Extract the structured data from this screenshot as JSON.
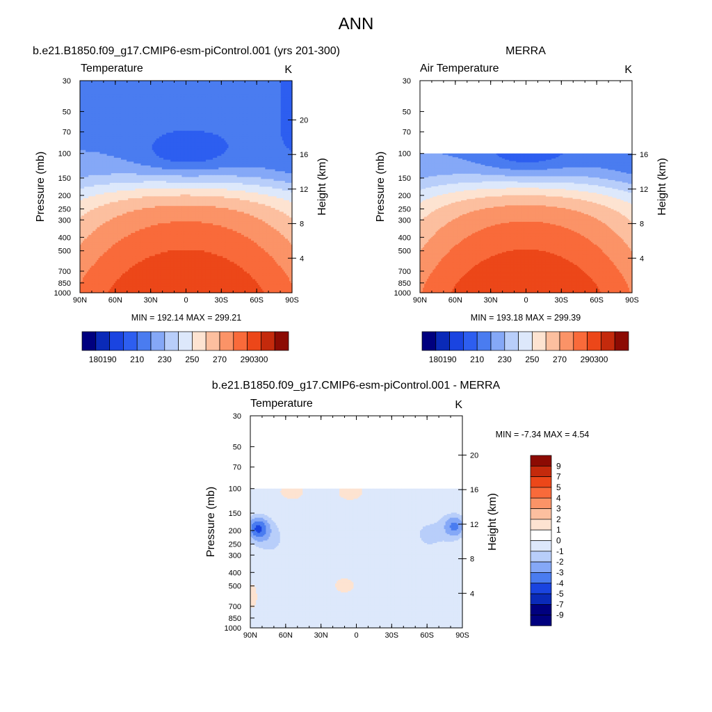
{
  "figure": {
    "title": "ANN"
  },
  "chart_data": [
    {
      "type": "heatmap",
      "panel_title": "b.e21.B1850.f09_g17.CMIP6-esm-piControl.001 (yrs 201-300)",
      "subtitle": "Temperature",
      "units": "K",
      "ylabel_left": "Pressure (mb)",
      "ylabel_right": "Height (km)",
      "x_ticks": [
        "90N",
        "60N",
        "30N",
        "0",
        "30S",
        "60S",
        "90S"
      ],
      "pressure_ticks": [
        30,
        50,
        70,
        100,
        150,
        200,
        250,
        300,
        400,
        500,
        700,
        850,
        1000
      ],
      "height_ticks": [
        4,
        8,
        12,
        16,
        20
      ],
      "ylim_mb": [
        1000,
        30
      ],
      "y_scale": "log",
      "summary": "MIN = 192.14  MAX = 299.21",
      "min": 192.14,
      "max": 299.21,
      "colorbar_orientation": "horizontal",
      "colorbar_levels": [
        180,
        190,
        200,
        210,
        220,
        230,
        240,
        250,
        260,
        270,
        280,
        290,
        300
      ],
      "colorbar_labels": [
        "180",
        "190",
        "210",
        "230",
        "250",
        "270",
        "290",
        "300"
      ],
      "colorbar_colors": [
        "#00007f",
        "#0a2ab8",
        "#1a44e0",
        "#2d5ef0",
        "#4a7cf0",
        "#85a8f7",
        "#b8cefa",
        "#dde8fb",
        "#fde3d1",
        "#fcbf9f",
        "#fb9367",
        "#f96a3a",
        "#ec4719",
        "#c42a0c",
        "#8c0b03"
      ]
    },
    {
      "type": "heatmap",
      "panel_title": "MERRA",
      "subtitle": "Air Temperature",
      "units": "K",
      "ylabel_left": "Pressure (mb)",
      "ylabel_right": "Height (km)",
      "x_ticks": [
        "90N",
        "60N",
        "30N",
        "0",
        "30S",
        "60S",
        "90S"
      ],
      "pressure_ticks": [
        30,
        50,
        70,
        100,
        150,
        200,
        250,
        300,
        400,
        500,
        700,
        850,
        1000
      ],
      "height_ticks": [
        4,
        8,
        12,
        16
      ],
      "ylim_mb": [
        1000,
        30
      ],
      "data_top_mb": 100,
      "y_scale": "log",
      "summary": "MIN = 193.18  MAX = 299.39",
      "min": 193.18,
      "max": 299.39,
      "colorbar_orientation": "horizontal",
      "colorbar_levels": [
        180,
        190,
        200,
        210,
        220,
        230,
        240,
        250,
        260,
        270,
        280,
        290,
        300
      ],
      "colorbar_labels": [
        "180",
        "190",
        "210",
        "230",
        "250",
        "270",
        "290",
        "300"
      ],
      "colorbar_colors": [
        "#00007f",
        "#0a2ab8",
        "#1a44e0",
        "#2d5ef0",
        "#4a7cf0",
        "#85a8f7",
        "#b8cefa",
        "#dde8fb",
        "#fde3d1",
        "#fcbf9f",
        "#fb9367",
        "#f96a3a",
        "#ec4719",
        "#c42a0c",
        "#8c0b03"
      ]
    },
    {
      "type": "heatmap",
      "panel_title": "b.e21.B1850.f09_g17.CMIP6-esm-piControl.001 - MERRA",
      "subtitle": "Temperature",
      "units": "K",
      "ylabel_left": "Pressure (mb)",
      "ylabel_right": "Height (km)",
      "x_ticks": [
        "90N",
        "60N",
        "30N",
        "0",
        "30S",
        "60S",
        "90S"
      ],
      "pressure_ticks": [
        30,
        50,
        70,
        100,
        150,
        200,
        250,
        300,
        400,
        500,
        700,
        850,
        1000
      ],
      "height_ticks": [
        4,
        8,
        12,
        16,
        20
      ],
      "ylim_mb": [
        1000,
        30
      ],
      "data_top_mb": 100,
      "y_scale": "log",
      "summary": "MIN =  -7.34  MAX =   4.54",
      "min": -7.34,
      "max": 4.54,
      "colorbar_orientation": "vertical",
      "colorbar_labels": [
        "9",
        "7",
        "5",
        "4",
        "3",
        "2",
        "1",
        "0",
        "-1",
        "-2",
        "-3",
        "-4",
        "-5",
        "-7",
        "-9"
      ],
      "colorbar_colors": [
        "#8c0b03",
        "#c42a0c",
        "#ec4719",
        "#f96a3a",
        "#fb9367",
        "#fcbf9f",
        "#fde3d1",
        "#ffffff",
        "#dde8fb",
        "#b8cefa",
        "#85a8f7",
        "#4a7cf0",
        "#1a44e0",
        "#0a2ab8",
        "#00007f"
      ]
    }
  ]
}
